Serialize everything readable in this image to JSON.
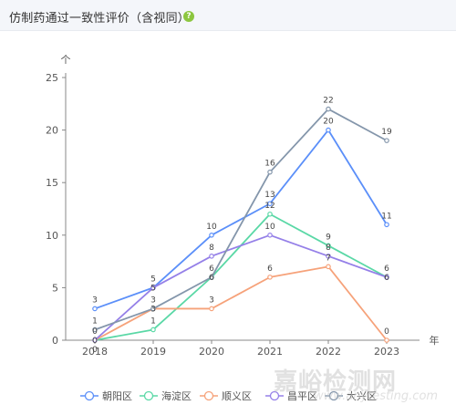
{
  "header": {
    "title": "仿制药通过一致性评价（含视同）",
    "help_icon": "help-icon",
    "help_glyph": "?"
  },
  "watermark": {
    "text": "嘉峪检测网",
    "url": "www.anytesting.com"
  },
  "chart_data": {
    "type": "line",
    "title": "仿制药通过一致性评价（含视同）",
    "ylabel": "个",
    "xlabel": "年",
    "ylim": [
      0,
      25
    ],
    "yticks": [
      0,
      5,
      10,
      15,
      20,
      25
    ],
    "categories": [
      "2018",
      "2019",
      "2020",
      "2021",
      "2022",
      "2023"
    ],
    "grid": false,
    "legend_position": "bottom",
    "series": [
      {
        "name": "朝阳区",
        "color": "#5b8ff9",
        "values": [
          3,
          5,
          10,
          13,
          20,
          11
        ]
      },
      {
        "name": "海淀区",
        "color": "#5ad8a6",
        "values": [
          0,
          1,
          6,
          12,
          9,
          6
        ]
      },
      {
        "name": "顺义区",
        "color": "#f6a27a",
        "values": [
          0,
          3,
          3,
          6,
          7,
          0
        ]
      },
      {
        "name": "昌平区",
        "color": "#9580e8",
        "values": [
          0,
          5,
          8,
          10,
          8,
          6
        ]
      },
      {
        "name": "大兴区",
        "color": "#8496ab",
        "values": [
          1,
          3,
          6,
          16,
          22,
          19
        ]
      }
    ]
  }
}
